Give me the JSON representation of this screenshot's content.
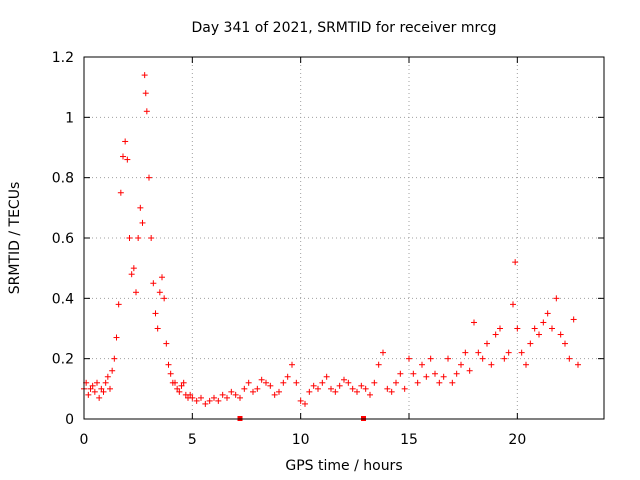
{
  "chart_data": {
    "type": "scatter",
    "title": "Day 341 of 2021, SRMTID for receiver mrcg",
    "xlabel": "GPS time / hours",
    "ylabel": "SRMTID / TECUs",
    "xlim": [
      0,
      24
    ],
    "ylim": [
      0,
      1.2
    ],
    "xticks": [
      0,
      5,
      10,
      15,
      20
    ],
    "xtick_labels": [
      "0",
      "5",
      "10",
      "15",
      "20"
    ],
    "yticks": [
      0,
      0.2,
      0.4,
      0.6,
      0.8,
      1.0,
      1.2
    ],
    "ytick_labels": [
      "0",
      "0.2",
      "0.4",
      "0.6",
      "0.8",
      "1",
      "1.2"
    ],
    "grid": true,
    "marker": "+",
    "color": "#ff0000",
    "gap_markers_x": [
      7.2,
      12.9
    ],
    "series": [
      {
        "name": "SRMTID",
        "x": [
          0.0,
          0.1,
          0.2,
          0.3,
          0.4,
          0.5,
          0.6,
          0.7,
          0.8,
          0.9,
          1.0,
          1.1,
          1.2,
          1.3,
          1.4,
          1.5,
          1.6,
          1.7,
          1.8,
          1.9,
          2.0,
          2.1,
          2.2,
          2.3,
          2.4,
          2.5,
          2.6,
          2.7,
          2.8,
          2.85,
          2.9,
          3.0,
          3.1,
          3.2,
          3.3,
          3.4,
          3.5,
          3.6,
          3.7,
          3.8,
          3.9,
          4.0,
          4.1,
          4.2,
          4.3,
          4.4,
          4.5,
          4.6,
          4.7,
          4.8,
          4.9,
          5.0,
          5.2,
          5.4,
          5.6,
          5.8,
          6.0,
          6.2,
          6.4,
          6.6,
          6.8,
          7.0,
          7.2,
          7.4,
          7.6,
          7.8,
          8.0,
          8.2,
          8.4,
          8.6,
          8.8,
          9.0,
          9.2,
          9.4,
          9.6,
          9.8,
          10.0,
          10.2,
          10.4,
          10.6,
          10.8,
          11.0,
          11.2,
          11.4,
          11.6,
          11.8,
          12.0,
          12.2,
          12.4,
          12.6,
          12.8,
          13.0,
          13.2,
          13.4,
          13.6,
          13.8,
          14.0,
          14.2,
          14.4,
          14.6,
          14.8,
          15.0,
          15.2,
          15.4,
          15.6,
          15.8,
          16.0,
          16.2,
          16.4,
          16.6,
          16.8,
          17.0,
          17.2,
          17.4,
          17.6,
          17.8,
          18.0,
          18.2,
          18.4,
          18.6,
          18.8,
          19.0,
          19.2,
          19.4,
          19.6,
          19.8,
          19.9,
          20.0,
          20.2,
          20.4,
          20.6,
          20.8,
          21.0,
          21.2,
          21.4,
          21.6,
          21.8,
          22.0,
          22.2,
          22.4,
          22.6,
          22.8
        ],
        "y": [
          0.1,
          0.12,
          0.08,
          0.1,
          0.11,
          0.09,
          0.12,
          0.07,
          0.1,
          0.09,
          0.12,
          0.14,
          0.1,
          0.16,
          0.2,
          0.27,
          0.38,
          0.75,
          0.87,
          0.92,
          0.86,
          0.6,
          0.48,
          0.5,
          0.42,
          0.6,
          0.7,
          0.65,
          1.14,
          1.08,
          1.02,
          0.8,
          0.6,
          0.45,
          0.35,
          0.3,
          0.42,
          0.47,
          0.4,
          0.25,
          0.18,
          0.15,
          0.12,
          0.12,
          0.1,
          0.09,
          0.11,
          0.12,
          0.08,
          0.07,
          0.08,
          0.07,
          0.06,
          0.07,
          0.05,
          0.06,
          0.07,
          0.06,
          0.08,
          0.07,
          0.09,
          0.08,
          0.07,
          0.1,
          0.12,
          0.09,
          0.1,
          0.13,
          0.12,
          0.11,
          0.08,
          0.09,
          0.12,
          0.14,
          0.18,
          0.12,
          0.06,
          0.05,
          0.09,
          0.11,
          0.1,
          0.12,
          0.14,
          0.1,
          0.09,
          0.11,
          0.13,
          0.12,
          0.1,
          0.09,
          0.11,
          0.1,
          0.08,
          0.12,
          0.18,
          0.22,
          0.1,
          0.09,
          0.12,
          0.15,
          0.1,
          0.2,
          0.15,
          0.12,
          0.18,
          0.14,
          0.2,
          0.15,
          0.12,
          0.14,
          0.2,
          0.12,
          0.15,
          0.18,
          0.22,
          0.16,
          0.32,
          0.22,
          0.2,
          0.25,
          0.18,
          0.28,
          0.3,
          0.2,
          0.22,
          0.38,
          0.52,
          0.3,
          0.22,
          0.18,
          0.25,
          0.3,
          0.28,
          0.32,
          0.35,
          0.3,
          0.4,
          0.28,
          0.25,
          0.2,
          0.33,
          0.18
        ]
      }
    ]
  }
}
